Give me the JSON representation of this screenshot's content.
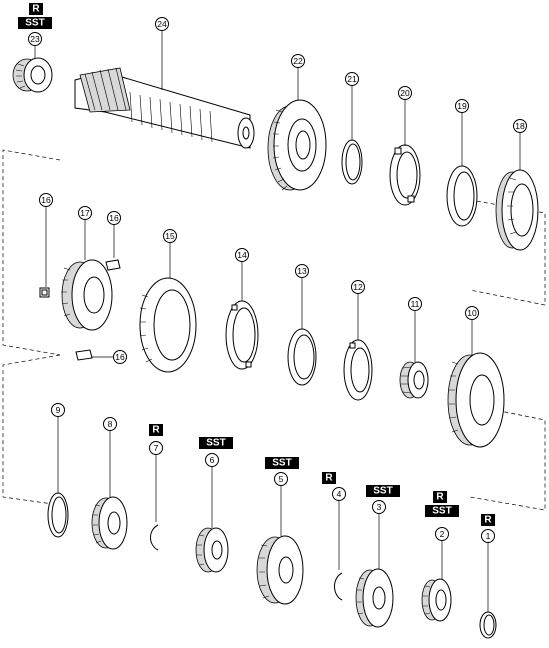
{
  "badges": {
    "r": "R",
    "sst": "SST"
  },
  "callouts": {
    "c1": "1",
    "c2": "2",
    "c3": "3",
    "c4": "4",
    "c5": "5",
    "c6": "6",
    "c7": "7",
    "c8": "8",
    "c9": "9",
    "c10": "10",
    "c11": "11",
    "c12": "12",
    "c13": "13",
    "c14": "14",
    "c15": "15",
    "c16a": "16",
    "c16b": "16",
    "c16c": "16",
    "c17": "17",
    "c18": "18",
    "c19": "19",
    "c20": "20",
    "c21": "21",
    "c22": "22",
    "c23": "23",
    "c24": "24"
  }
}
